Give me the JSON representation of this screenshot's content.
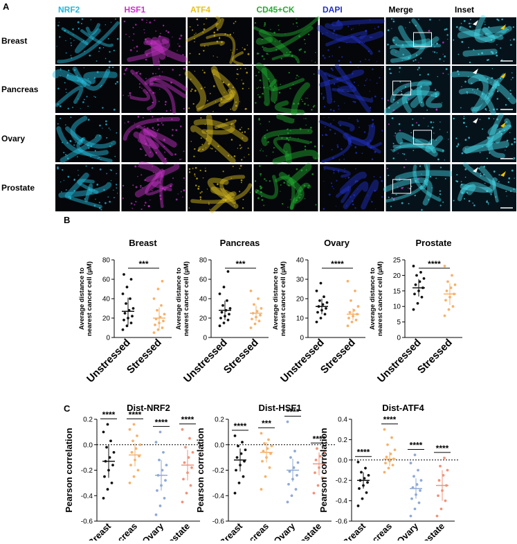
{
  "panel_labels": [
    "A",
    "B",
    "C"
  ],
  "panel_a": {
    "columns": [
      {
        "name": "NRF2",
        "color": "#22b8d8"
      },
      {
        "name": "HSF1",
        "color": "#d42bd0"
      },
      {
        "name": "ATF4",
        "color": "#e8c21a"
      },
      {
        "name": "CD45+CK",
        "color": "#1fae2a"
      },
      {
        "name": "DAPI",
        "color": "#2230c8"
      },
      {
        "name": "Merge",
        "color": "#000000"
      },
      {
        "name": "Inset",
        "color": "#000000"
      }
    ],
    "rows": [
      "Breast",
      "Pancreas",
      "Ovary",
      "Prostate"
    ]
  },
  "chart_data": [
    {
      "type": "dotplot",
      "title": "Breast",
      "ylabel": [
        "Average distance to",
        "nearest cancer cell (µM)"
      ],
      "categories": [
        "Unstressed",
        "Stressed"
      ],
      "colors": [
        "#111111",
        "#f5b26b"
      ],
      "values": [
        [
          8,
          12,
          15,
          18,
          20,
          22,
          25,
          28,
          30,
          35,
          40,
          45,
          52,
          60,
          65
        ],
        [
          5,
          8,
          10,
          13,
          15,
          17,
          19,
          21,
          24,
          28,
          33,
          40,
          50,
          58
        ]
      ],
      "means": [
        27,
        20
      ],
      "sds": [
        14,
        11
      ],
      "annotations": [
        "***"
      ],
      "ylim": [
        0,
        80
      ],
      "yticks": [
        0,
        20,
        40,
        60,
        80
      ]
    },
    {
      "type": "dotplot",
      "title": "Pancreas",
      "ylabel": [
        "Average distance to",
        "nearest cancer cell (µM)"
      ],
      "categories": [
        "Unstressed",
        "Stressed"
      ],
      "colors": [
        "#111111",
        "#f5b26b"
      ],
      "values": [
        [
          12,
          15,
          18,
          20,
          22,
          24,
          26,
          28,
          30,
          33,
          38,
          45,
          52,
          68
        ],
        [
          10,
          14,
          17,
          19,
          21,
          23,
          25,
          27,
          30,
          34,
          40,
          48
        ]
      ],
      "means": [
        28,
        25
      ],
      "sds": [
        10,
        8
      ],
      "annotations": [
        "***"
      ],
      "ylim": [
        0,
        80
      ],
      "yticks": [
        0,
        20,
        40,
        60,
        80
      ]
    },
    {
      "type": "dotplot",
      "title": "Ovary",
      "ylabel": [
        "Average distance to",
        "nearest cancer cell (µM)"
      ],
      "categories": [
        "Unstressed",
        "Stressed"
      ],
      "colors": [
        "#111111",
        "#f5b26b"
      ],
      "values": [
        [
          8,
          10,
          12,
          13,
          14,
          15,
          16,
          17,
          18,
          19,
          21,
          24,
          28
        ],
        [
          6,
          8,
          9,
          10,
          11,
          12,
          13,
          14,
          16,
          19,
          24,
          29
        ]
      ],
      "means": [
        16,
        12
      ],
      "sds": [
        4,
        3
      ],
      "annotations": [
        "****"
      ],
      "ylim": [
        0,
        40
      ],
      "yticks": [
        0,
        10,
        20,
        30,
        40
      ]
    },
    {
      "type": "dotplot",
      "title": "Prostate",
      "ylabel": [
        "Average distance to",
        "nearest cancer cell (µM)"
      ],
      "categories": [
        "Unstressed",
        "Stressed"
      ],
      "colors": [
        "#111111",
        "#f5b26b"
      ],
      "values": [
        [
          9,
          11,
          13,
          14,
          15,
          16,
          17,
          18,
          19,
          20,
          21,
          23
        ],
        [
          7,
          9,
          10,
          12,
          13,
          14,
          15,
          16,
          17,
          18,
          20,
          23
        ]
      ],
      "means": [
        16,
        14
      ],
      "sds": [
        2.8,
        3.5
      ],
      "annotations": [
        "****"
      ],
      "ylim": [
        0,
        25
      ],
      "yticks": [
        0,
        5,
        10,
        15,
        20,
        25
      ]
    },
    {
      "type": "dotplot",
      "title": "Dist-NRF2",
      "ylabel": [
        "Pearson correlation"
      ],
      "categories": [
        "Breast",
        "Pancreas",
        "Ovary",
        "Prostate"
      ],
      "colors": [
        "#111111",
        "#f5b26b",
        "#8fa9d6",
        "#f0937a"
      ],
      "values": [
        [
          -0.42,
          -0.35,
          -0.3,
          -0.25,
          -0.2,
          -0.16,
          -0.13,
          -0.1,
          -0.06,
          -0.02,
          0.03,
          0.1,
          0.16
        ],
        [
          -0.3,
          -0.25,
          -0.2,
          -0.16,
          -0.12,
          -0.09,
          -0.06,
          -0.03,
          0,
          0.03,
          0.07,
          0.12,
          0.16
        ],
        [
          -0.55,
          -0.48,
          -0.42,
          -0.36,
          -0.32,
          -0.28,
          -0.24,
          -0.2,
          -0.16,
          -0.12,
          -0.06,
          0.02,
          0.1
        ],
        [
          -0.45,
          -0.38,
          -0.32,
          -0.27,
          -0.22,
          -0.18,
          -0.14,
          -0.1,
          -0.06,
          -0.02,
          0.05,
          0.12
        ]
      ],
      "means": [
        -0.13,
        -0.08,
        -0.24,
        -0.16
      ],
      "sds": [
        0.13,
        0.09,
        0.12,
        0.12
      ],
      "annotations": [
        "****",
        "****",
        "****",
        "****"
      ],
      "reference_line": 0,
      "ylim": [
        -0.6,
        0.2
      ],
      "yticks": [
        0.2,
        {
          "value": 0,
          "label": "0.0"
        },
        -0.2,
        -0.4,
        -0.6
      ]
    },
    {
      "type": "dotplot",
      "title": "Dist-HSF1",
      "ylabel": [
        "Pearson correlation"
      ],
      "categories": [
        "Breast",
        "Pancreas",
        "Ovary",
        "Prostate"
      ],
      "colors": [
        "#111111",
        "#f5b26b",
        "#8fa9d6",
        "#f0937a"
      ],
      "values": [
        [
          -0.38,
          -0.3,
          -0.25,
          -0.2,
          -0.16,
          -0.13,
          -0.1,
          -0.07,
          -0.04,
          -0.01,
          0.02,
          0.07
        ],
        [
          -0.35,
          -0.25,
          -0.18,
          -0.13,
          -0.1,
          -0.07,
          -0.05,
          -0.03,
          -0.01,
          0.01,
          0.04,
          0.09
        ],
        [
          -0.45,
          -0.4,
          -0.35,
          -0.31,
          -0.27,
          -0.24,
          -0.21,
          -0.18,
          -0.14,
          -0.1,
          -0.05,
          0.18
        ],
        [
          -0.38,
          -0.32,
          -0.26,
          -0.22,
          -0.18,
          -0.15,
          -0.12,
          -0.09,
          -0.06,
          -0.03
        ]
      ],
      "means": [
        -0.12,
        -0.06,
        -0.2,
        -0.15
      ],
      "sds": [
        0.09,
        0.08,
        0.09,
        0.09
      ],
      "annotations": [
        "****",
        "***",
        "****",
        "****"
      ],
      "reference_line": 0,
      "ylim": [
        -0.6,
        0.2
      ],
      "yticks": [
        0.2,
        {
          "value": 0,
          "label": "0.0"
        },
        -0.2,
        -0.4,
        -0.6
      ]
    },
    {
      "type": "dotplot",
      "title": "Dist-ATF4",
      "ylabel": [
        "Pearson correlation"
      ],
      "categories": [
        "Breast",
        "Pancreas",
        "Ovary",
        "Prostate"
      ],
      "colors": [
        "#111111",
        "#f5b26b",
        "#8fa9d6",
        "#f0937a"
      ],
      "values": [
        [
          -0.45,
          -0.38,
          -0.32,
          -0.28,
          -0.25,
          -0.22,
          -0.2,
          -0.18,
          -0.15,
          -0.12,
          -0.08,
          -0.02
        ],
        [
          -0.12,
          -0.08,
          -0.05,
          -0.03,
          -0.01,
          0.01,
          0.03,
          0.06,
          0.1,
          0.15,
          0.22,
          0.3
        ],
        [
          -0.55,
          -0.48,
          -0.42,
          -0.38,
          -0.34,
          -0.3,
          -0.27,
          -0.24,
          -0.2,
          -0.16,
          -0.1,
          -0.03,
          0.05
        ],
        [
          -0.55,
          -0.48,
          -0.4,
          -0.35,
          -0.3,
          -0.25,
          -0.2,
          -0.15,
          -0.1,
          -0.06,
          0.02
        ]
      ],
      "means": [
        -0.2,
        0.01,
        -0.28,
        -0.25
      ],
      "sds": [
        0.08,
        0.07,
        0.1,
        0.15
      ],
      "annotations": [
        "****",
        "****",
        "****",
        "****"
      ],
      "reference_line": 0,
      "ylim": [
        -0.6,
        0.4
      ],
      "yticks": [
        0.4,
        0.2,
        {
          "value": 0,
          "label": "0.0"
        },
        -0.2,
        -0.4,
        -0.6
      ]
    }
  ]
}
